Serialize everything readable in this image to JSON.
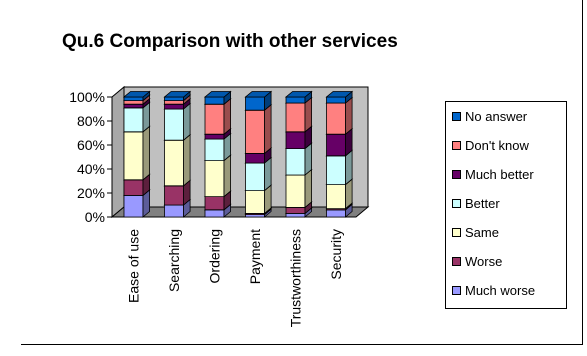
{
  "chart_data": {
    "type": "bar",
    "stacked": "percent",
    "title": "Qu.6 Comparison with other services",
    "xlabel": "",
    "ylabel": "",
    "ylim": [
      0,
      100
    ],
    "yticks": [
      "0%",
      "20%",
      "40%",
      "60%",
      "80%",
      "100%"
    ],
    "categories": [
      "Ease of use",
      "Searching",
      "Ordering",
      "Payment",
      "Trustworthiness",
      "Security"
    ],
    "legend_position": "right",
    "grid": false,
    "series": [
      {
        "name": "Much worse",
        "color": "#9999ff",
        "values": [
          18,
          10,
          6,
          2,
          3,
          6
        ]
      },
      {
        "name": "Worse",
        "color": "#993366",
        "values": [
          13,
          16,
          11,
          1,
          5,
          1
        ]
      },
      {
        "name": "Same",
        "color": "#ffffcc",
        "values": [
          40,
          38,
          30,
          19,
          27,
          20
        ]
      },
      {
        "name": "Better",
        "color": "#ccffff",
        "values": [
          20,
          26,
          18,
          23,
          22,
          24
        ]
      },
      {
        "name": "Much better",
        "color": "#660066",
        "values": [
          3,
          4,
          4,
          8,
          14,
          18
        ]
      },
      {
        "name": "Don't know",
        "color": "#ff8080",
        "values": [
          3,
          3,
          25,
          36,
          24,
          26
        ]
      },
      {
        "name": "No answer",
        "color": "#0066cc",
        "values": [
          3,
          3,
          6,
          11,
          5,
          5
        ]
      }
    ]
  }
}
